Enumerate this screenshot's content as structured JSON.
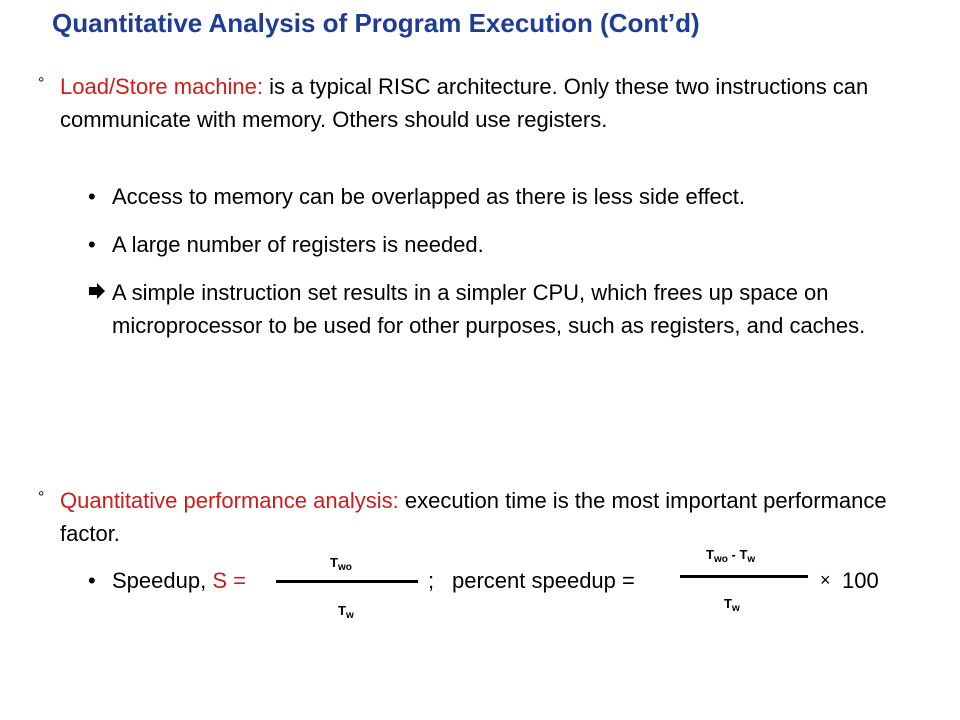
{
  "title": "Quantitative Analysis of Program Execution (Cont’d)",
  "colors": {
    "title": "#1f3c96",
    "highlight": "#d11a1a"
  },
  "section1": {
    "marker": "°",
    "lead": "Load/Store machine:",
    "rest": " is a typical RISC architecture. Only these two instructions can communicate with memory. Others should use registers.",
    "bullets": [
      "Access to memory can be overlapped as there is less side effect.",
      "A large number of registers is needed."
    ],
    "arrow_icon": "right-arrow-icon",
    "conclusion": "A simple instruction set results in a simpler CPU, which frees up space on microprocessor to be used for other purposes, such as registers, and caches."
  },
  "section2": {
    "marker": "°",
    "lead": "Quantitative performance analysis:",
    "rest": " execution time is the most important performance factor.",
    "speedup_label": "Speedup, ",
    "speedup_var": "S =",
    "separator": ";",
    "percent_label": "percent speedup =",
    "times": "×",
    "hundred": "100",
    "frac1": {
      "num_base": "T",
      "num_sub": "wo",
      "den_base": "T",
      "den_sub": "w"
    },
    "frac2": {
      "num_a_base": "T",
      "num_a_sub": "wo",
      "minus": "-",
      "num_b_base": "T",
      "num_b_sub": "w",
      "den_base": "T",
      "den_sub": "w"
    }
  }
}
